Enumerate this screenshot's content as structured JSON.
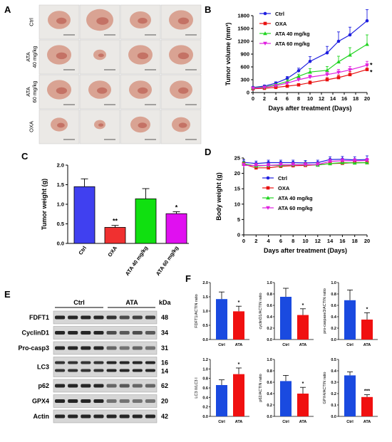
{
  "panels": {
    "A": "A",
    "B": "B",
    "C": "C",
    "D": "D",
    "E": "E",
    "F": "F"
  },
  "panel_a": {
    "rows": [
      "Ctrl",
      "ATA\n40 mg/kg",
      "ATA\n60 mg/kg",
      "OXA"
    ],
    "tumor_sizes": [
      [
        0.8,
        0.95,
        0.75,
        0.85
      ],
      [
        0.85,
        0.45,
        0.85,
        0.85
      ],
      [
        0.85,
        0.8,
        0.8,
        0.8
      ],
      [
        0.6,
        0.4,
        0.7,
        0.65
      ]
    ],
    "tumor_color": "#d9a393",
    "tumor_dark": "#b24a3f"
  },
  "colors": {
    "ctrl": "#1f1fe0",
    "oxa": "#e81010",
    "ata40": "#22d422",
    "ata60": "#e020e0"
  },
  "chart_data": [
    {
      "panel": "B",
      "type": "line",
      "xlabel": "Days after treatment (Days)",
      "ylabel": "Tumor volume (mm³)",
      "xlim": [
        0,
        20
      ],
      "ylim": [
        0,
        1800
      ],
      "xticks": [
        0,
        2,
        4,
        6,
        8,
        10,
        12,
        14,
        16,
        18,
        20
      ],
      "yticks": [
        0,
        300,
        600,
        900,
        1200,
        1500,
        1800
      ],
      "x": [
        0,
        2,
        4,
        6,
        8,
        10,
        13,
        15,
        17,
        20
      ],
      "series": [
        {
          "name": "Ctrl",
          "color": "#1f1fe0",
          "marker": "circle",
          "values": [
            120,
            150,
            220,
            330,
            510,
            730,
            930,
            1200,
            1350,
            1680
          ],
          "err": [
            20,
            25,
            30,
            45,
            60,
            110,
            150,
            220,
            180,
            260
          ]
        },
        {
          "name": "OXA",
          "color": "#e81010",
          "marker": "square",
          "values": [
            90,
            100,
            120,
            150,
            180,
            230,
            300,
            350,
            420,
            540
          ],
          "err": [
            10,
            15,
            20,
            25,
            30,
            40,
            50,
            60,
            70,
            90
          ]
        },
        {
          "name": "ATA 40 mg/kg",
          "color": "#22d422",
          "marker": "triangle",
          "values": [
            110,
            130,
            180,
            260,
            380,
            480,
            520,
            720,
            880,
            1130
          ],
          "err": [
            15,
            20,
            25,
            40,
            50,
            80,
            90,
            130,
            170,
            220
          ]
        },
        {
          "name": "ATA 60 mg/kg",
          "color": "#e020e0",
          "marker": "triangle-down",
          "values": [
            100,
            120,
            160,
            220,
            300,
            360,
            420,
            470,
            530,
            640
          ],
          "err": [
            15,
            20,
            25,
            30,
            40,
            50,
            60,
            70,
            80,
            90
          ]
        }
      ],
      "annotations": [
        "*",
        "*"
      ],
      "legend": "top-left"
    },
    {
      "panel": "C",
      "type": "bar",
      "ylabel": "Tumor weight (g)",
      "categories": [
        "Ctrl",
        "OXA",
        "ATA 40 mg/kg",
        "ATA 60 mg/kg"
      ],
      "values": [
        1.45,
        0.41,
        1.14,
        0.76
      ],
      "err": [
        0.2,
        0.05,
        0.26,
        0.05
      ],
      "colors": [
        "#4040f0",
        "#f03030",
        "#10e010",
        "#e010f0"
      ],
      "sig": [
        "",
        "**",
        "",
        "*"
      ],
      "ylim": [
        0,
        2.0
      ],
      "yticks": [
        "0.0",
        "0.5",
        "1.0",
        "1.5",
        "2.0"
      ]
    },
    {
      "panel": "D",
      "type": "line",
      "xlabel": "Days after treatment (Days)",
      "ylabel": "Body weight (g)",
      "xlim": [
        0,
        20
      ],
      "ylim": [
        0,
        25
      ],
      "xticks": [
        0,
        2,
        4,
        6,
        8,
        10,
        12,
        14,
        16,
        18,
        20
      ],
      "yticks": [
        0,
        5,
        10,
        15,
        20,
        25
      ],
      "x": [
        0,
        2,
        4,
        6,
        8,
        10,
        12,
        14,
        16,
        18,
        20
      ],
      "series": [
        {
          "name": "Ctrl",
          "color": "#1f1fe0",
          "marker": "circle",
          "values": [
            23.6,
            23.2,
            23.5,
            23.5,
            23.5,
            23.4,
            23.5,
            24.5,
            24.6,
            24.4,
            24.5
          ],
          "err": [
            0.8,
            0.8,
            0.8,
            0.8,
            0.8,
            0.8,
            0.8,
            0.9,
            0.9,
            1.0,
            1.2
          ]
        },
        {
          "name": "OXA",
          "color": "#e81010",
          "marker": "square",
          "values": [
            23.0,
            21.8,
            21.8,
            22.3,
            22.5,
            22.6,
            22.8,
            23.2,
            23.3,
            23.5,
            23.5
          ],
          "err": [
            0.6,
            0.6,
            0.6,
            0.6,
            0.6,
            0.6,
            0.6,
            0.6,
            0.6,
            0.6,
            0.6
          ]
        },
        {
          "name": "ATA 40 mg/kg",
          "color": "#22d422",
          "marker": "triangle",
          "values": [
            23.1,
            22.4,
            22.6,
            22.6,
            22.8,
            22.9,
            22.7,
            23.2,
            23.5,
            23.4,
            23.5
          ],
          "err": [
            0.7,
            0.7,
            0.7,
            0.7,
            0.7,
            0.7,
            0.7,
            0.7,
            0.7,
            0.7,
            0.7
          ]
        },
        {
          "name": "ATA 60 mg/kg",
          "color": "#e020e0",
          "marker": "triangle-down",
          "values": [
            22.6,
            22.6,
            22.6,
            22.8,
            22.8,
            22.8,
            22.9,
            23.9,
            24.1,
            24.1,
            24.2
          ],
          "err": [
            0.7,
            0.7,
            0.7,
            0.7,
            0.7,
            0.7,
            0.7,
            0.7,
            0.7,
            0.7,
            0.7
          ]
        }
      ],
      "legend": "right"
    },
    {
      "panel": "F",
      "type": "bar",
      "subplots": [
        {
          "ylabel": "FDFT1/ACTIN ratio",
          "categories": [
            "Ctrl",
            "ATA"
          ],
          "values": [
            1.42,
            0.99
          ],
          "err": [
            0.25,
            0.18
          ],
          "ylim": [
            0,
            2.0
          ],
          "yticks": [
            "0.0",
            "0.5",
            "1.0",
            "1.5",
            "2.0"
          ],
          "sig": "*"
        },
        {
          "ylabel": "cyclinD1/ACTIN ratio",
          "categories": [
            "Ctrl",
            "ATA"
          ],
          "values": [
            0.75,
            0.43
          ],
          "err": [
            0.15,
            0.11
          ],
          "ylim": [
            0,
            1.0
          ],
          "yticks": [
            "0.0",
            "0.2",
            "0.4",
            "0.6",
            "0.8",
            "1.0"
          ],
          "sig": "*"
        },
        {
          "ylabel": "pro-caspase3/ACTIN ratio",
          "categories": [
            "Ctrl",
            "ATA"
          ],
          "values": [
            0.69,
            0.35
          ],
          "err": [
            0.18,
            0.12
          ],
          "ylim": [
            0,
            1.0
          ],
          "yticks": [
            "0.0",
            "0.2",
            "0.4",
            "0.6",
            "0.8",
            "1.0"
          ],
          "sig": "*"
        },
        {
          "ylabel": "LC3 II/LC3 I",
          "categories": [
            "Ctrl",
            "ATA"
          ],
          "values": [
            0.66,
            0.89
          ],
          "err": [
            0.11,
            0.13
          ],
          "ylim": [
            0,
            1.2
          ],
          "yticks": [
            "0.0",
            "0.2",
            "0.4",
            "0.6",
            "0.8",
            "1.0",
            "1.2"
          ],
          "sig": "*"
        },
        {
          "ylabel": "p62/ACTIN ratio",
          "categories": [
            "Ctrl",
            "ATA"
          ],
          "values": [
            0.62,
            0.4
          ],
          "err": [
            0.1,
            0.11
          ],
          "ylim": [
            0,
            1.0
          ],
          "yticks": [
            "0.0",
            "0.2",
            "0.4",
            "0.6",
            "0.8",
            "1.0"
          ],
          "sig": "*"
        },
        {
          "ylabel": "GPX4/ACTIN ratio",
          "categories": [
            "Ctrl",
            "ATA"
          ],
          "values": [
            0.36,
            0.17
          ],
          "err": [
            0.03,
            0.02
          ],
          "ylim": [
            0,
            0.5
          ],
          "yticks": [
            "0.0",
            "0.1",
            "0.2",
            "0.3",
            "0.4",
            "0.5"
          ],
          "sig": "***"
        }
      ],
      "colors": [
        "#1a4ae0",
        "#f01010"
      ]
    }
  ],
  "western_blot": {
    "groups": [
      "Ctrl",
      "ATA"
    ],
    "kda_header": "kDa",
    "rows": [
      {
        "label": "FDFT1",
        "kda": [
          "48"
        ],
        "intensity": [
          0.85,
          0.85,
          0.85,
          0.85,
          0.8,
          0.7,
          0.75,
          0.75
        ]
      },
      {
        "label": "CyclinD1",
        "kda": [
          "34"
        ],
        "intensity": [
          0.85,
          0.85,
          0.85,
          0.85,
          0.7,
          0.65,
          0.7,
          0.65
        ]
      },
      {
        "label": "Pro-casp3",
        "kda": [
          "31"
        ],
        "intensity": [
          0.85,
          0.85,
          0.85,
          0.85,
          0.6,
          0.55,
          0.6,
          0.55
        ]
      },
      {
        "label": "LC3",
        "kda": [
          "16",
          "14"
        ],
        "intensity": [
          0.8,
          0.8,
          0.8,
          0.8,
          0.85,
          0.85,
          0.85,
          0.85
        ]
      },
      {
        "label": "p62",
        "kda": [
          "62"
        ],
        "intensity": [
          0.85,
          0.85,
          0.85,
          0.85,
          0.6,
          0.65,
          0.6,
          0.6
        ]
      },
      {
        "label": "GPX4",
        "kda": [
          "20"
        ],
        "intensity": [
          0.85,
          0.85,
          0.85,
          0.85,
          0.55,
          0.55,
          0.55,
          0.55
        ]
      },
      {
        "label": "Actin",
        "kda": [
          "42"
        ],
        "intensity": [
          0.85,
          0.85,
          0.85,
          0.85,
          0.85,
          0.85,
          0.85,
          0.85
        ]
      }
    ]
  }
}
